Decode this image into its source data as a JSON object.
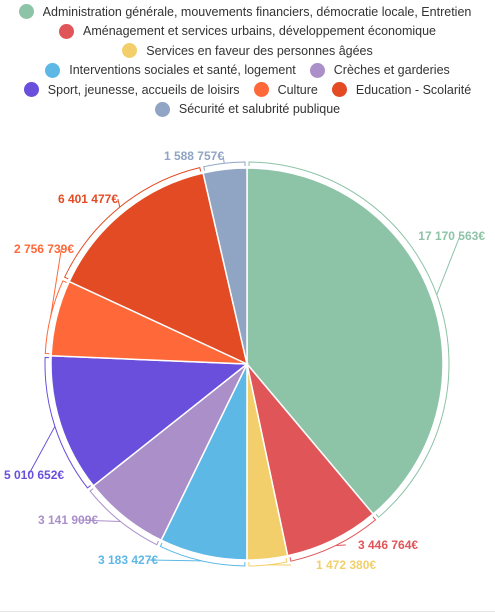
{
  "chart_data": {
    "type": "pie",
    "currency_suffix": "€",
    "slices": [
      {
        "label": "Administration générale, mouvements financiers, démocratie locale, Entretien",
        "value": 17170563,
        "value_label": "17 170 563€",
        "color": "#8dc3a7"
      },
      {
        "label": "Aménagement et services urbains, développement économique",
        "value": 3446764,
        "value_label": "3 446 764€",
        "color": "#e05558"
      },
      {
        "label": "Services en faveur des personnes âgées",
        "value": 1472380,
        "value_label": "1 472 380€",
        "color": "#f2cf6b"
      },
      {
        "label": "Interventions sociales et santé, logement",
        "value": 3183427,
        "value_label": "3 183 427€",
        "color": "#5db8e6"
      },
      {
        "label": "Crèches et garderies",
        "value": 3141909,
        "value_label": "3 141 909€",
        "color": "#aa8fc9"
      },
      {
        "label": "Sport, jeunesse, accueils de loisirs",
        "value": 5010652,
        "value_label": "5 010 652€",
        "color": "#6a4fdc"
      },
      {
        "label": "Culture",
        "value": 2756739,
        "value_label": "2 756 739€",
        "color": "#ff6838"
      },
      {
        "label": "Education - Scolarité",
        "value": 6401477,
        "value_label": "6 401 477€",
        "color": "#e24b24"
      },
      {
        "label": "Sécurité et salubrité publique",
        "value": 1588757,
        "value_label": "1 588 757€",
        "color": "#90a4c4"
      }
    ],
    "legend_position": "top",
    "legend_rows": [
      [
        0
      ],
      [
        1
      ],
      [
        2
      ],
      [
        3,
        4
      ],
      [
        5,
        6,
        7
      ],
      [
        8
      ]
    ]
  }
}
